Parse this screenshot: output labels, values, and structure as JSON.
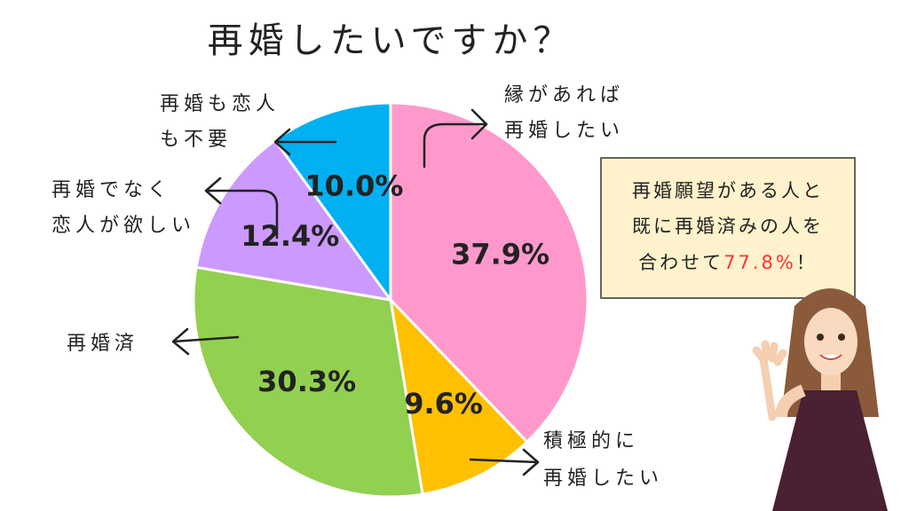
{
  "chart_data": {
    "type": "pie",
    "title": "再婚したいですか？",
    "categories": [
      [
        "縁があれば",
        "再婚したい"
      ],
      [
        "積極的に",
        "再婚したい"
      ],
      [
        "再婚済"
      ],
      [
        "再婚でなく",
        "恋人が欲しい"
      ],
      [
        "再婚も恋人",
        "も不要"
      ]
    ],
    "values": [
      37.9,
      9.6,
      30.3,
      12.4,
      10.0
    ],
    "value_labels": [
      "37.9%",
      "9.6%",
      "30.3%",
      "12.4%",
      "10.0%"
    ],
    "colors": [
      "#ff99cc",
      "#ffc000",
      "#92d050",
      "#cc99ff",
      "#00b0f0"
    ]
  },
  "note": {
    "lines": [
      "再婚願望がある人と",
      "既に再婚済みの人を"
    ],
    "last_line": "合わせて",
    "highlight": "77.8%",
    "end": "！"
  }
}
